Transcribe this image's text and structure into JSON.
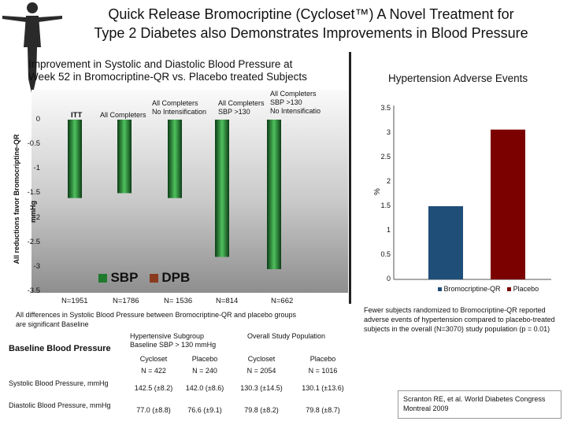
{
  "title_line1": "Quick Release Bromocriptine (Cycloset™) A Novel Treatment for",
  "title_line2": "Type 2 Diabetes also Demonstrates Improvements in Blood Pressure",
  "left_chart_title_1": "Improvement in Systolic and Diastolic Blood Pressure at",
  "left_chart_title_2": "Week 52 in Bromocriptine-QR vs. Placebo treated Subjects",
  "right_chart_title": "Hypertension Adverse Events",
  "colors": {
    "sbp": "#1f7a2e",
    "dpb": "#8a3a1f",
    "bromo": "#1f4e79",
    "placebo": "#7b0000"
  },
  "chart_data": [
    {
      "type": "bar",
      "y_axis_label": "All reductions favor Bromocriptine-QR",
      "y_unit": "mmHg",
      "ylim": [
        -3.5,
        0
      ],
      "y_ticks": [
        "0",
        "-0.5",
        "-1",
        "-1.5",
        "-2",
        "-2.5",
        "-3",
        "-3.5"
      ],
      "groups": [
        {
          "label": "ITT",
          "n": "N=1951"
        },
        {
          "label": "All Completers",
          "n": "N=1786"
        },
        {
          "label_line1": "All Completers",
          "label_line2": "No Intensification",
          "n": "N= 1536"
        },
        {
          "label_line1": "All Completers",
          "label_line2": "SBP >130",
          "n": "N=814"
        },
        {
          "label_line1": "All Completers",
          "label_line2": "SBP >130",
          "label_line3": "No Intensificatio",
          "n": "N=662"
        }
      ],
      "series": [
        {
          "name": "SBP",
          "values": [
            -1.6,
            -1.5,
            -1.6,
            -2.8,
            -3.05
          ]
        },
        {
          "name": "DPB",
          "values": [
            0,
            0,
            0,
            0,
            0
          ]
        }
      ],
      "legend": [
        "SBP",
        "DPB"
      ],
      "legend_placement": "bottom"
    },
    {
      "type": "bar",
      "ylabel": "%",
      "ylim": [
        0,
        3.5
      ],
      "y_ticks": [
        "3.5",
        "3",
        "2.5",
        "2",
        "1.5",
        "1",
        "0.5",
        "0"
      ],
      "categories": [
        "Bromocriptine-QR",
        "Placebo"
      ],
      "values": [
        1.5,
        3.07
      ],
      "legend": [
        "Bromocriptine-QR",
        "Placebo"
      ],
      "legend_placement": "bottom"
    }
  ],
  "footnote_left": "All differences in Systolic Blood Pressure between Bromocriptine-QR and placebo groups are significant Baseline",
  "footnote_right": "Fewer subjects randomized to Bromocriptine-QR reported adverse events of hypertension compared to placebo-treated subjects in the overall (N=3070) study population (p = 0.01)",
  "table": {
    "row_header": "Baseline Blood Pressure",
    "group1": "Hypertensive Subgroup Baseline SBP > 130 mmHg",
    "group2": "Overall Study Population",
    "cols": [
      "Cycloset",
      "Placebo",
      "Cycloset",
      "Placebo"
    ],
    "ns": [
      "N = 422",
      "N = 240",
      "N = 2054",
      "N = 1016"
    ],
    "rows": [
      {
        "label": "Systolic Blood Pressure, mmHg",
        "values": [
          "142.5 (±8.2)",
          "142.0 (±8.6)",
          "130.3 (±14.5)",
          "130.1 (±13.6)"
        ]
      },
      {
        "label": "Diastolic Blood Pressure, mmHg",
        "values": [
          "77.0 (±8.8)",
          "76.6 (±9.1)",
          "79.8 (±8.2)",
          "79.8 (±8.7)"
        ]
      }
    ]
  },
  "citation": "Scranton RE, et al. World Diabetes Congress Montreal 2009"
}
